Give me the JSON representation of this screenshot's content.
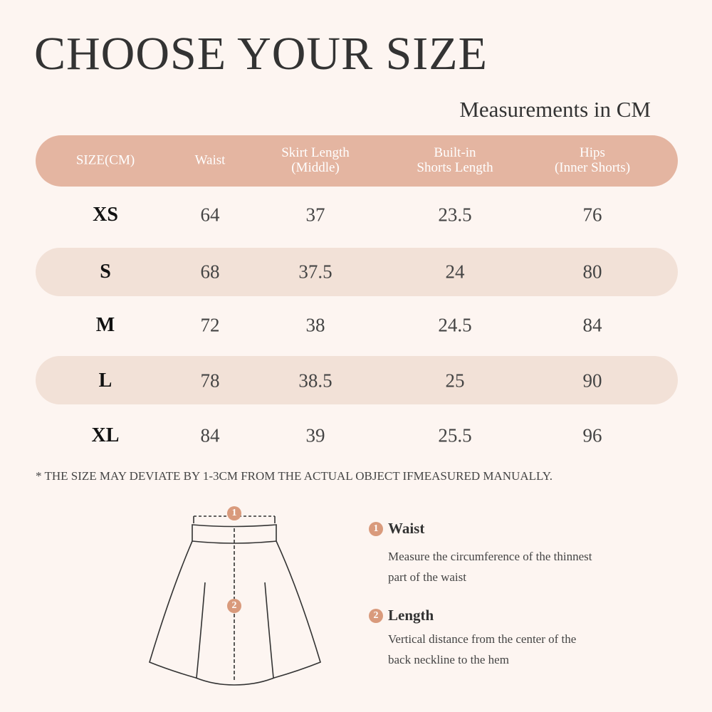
{
  "header": {
    "title": "CHOOSE YOUR SIZE",
    "subtitle": "Measurements in CM"
  },
  "table": {
    "columns": [
      [
        "SIZE(CM)"
      ],
      [
        "Waist"
      ],
      [
        "Skirt Length",
        "(Middle)"
      ],
      [
        "Built-in",
        "Shorts Length"
      ],
      [
        "Hips",
        "(Inner Shorts)"
      ]
    ],
    "rows": [
      [
        "XS",
        64,
        37,
        23.5,
        76
      ],
      [
        "S",
        68,
        37.5,
        24,
        80
      ],
      [
        "M",
        72,
        38,
        24.5,
        84
      ],
      [
        "L",
        78,
        38.5,
        25,
        90
      ],
      [
        "XL",
        84,
        39,
        25.5,
        96
      ]
    ]
  },
  "note": "* THE SIZE MAY DEVIATE BY 1-3CM FROM THE ACTUAL OBJECT IFMEASURED MANUALLY.",
  "guide": {
    "items": [
      {
        "number": "1",
        "title": "Waist",
        "text": "Measure the circumference of the thinnest part of the waist"
      },
      {
        "number": "2",
        "title": "Length",
        "text": "Vertical distance from the center of the back neckline to the hem"
      }
    ]
  }
}
